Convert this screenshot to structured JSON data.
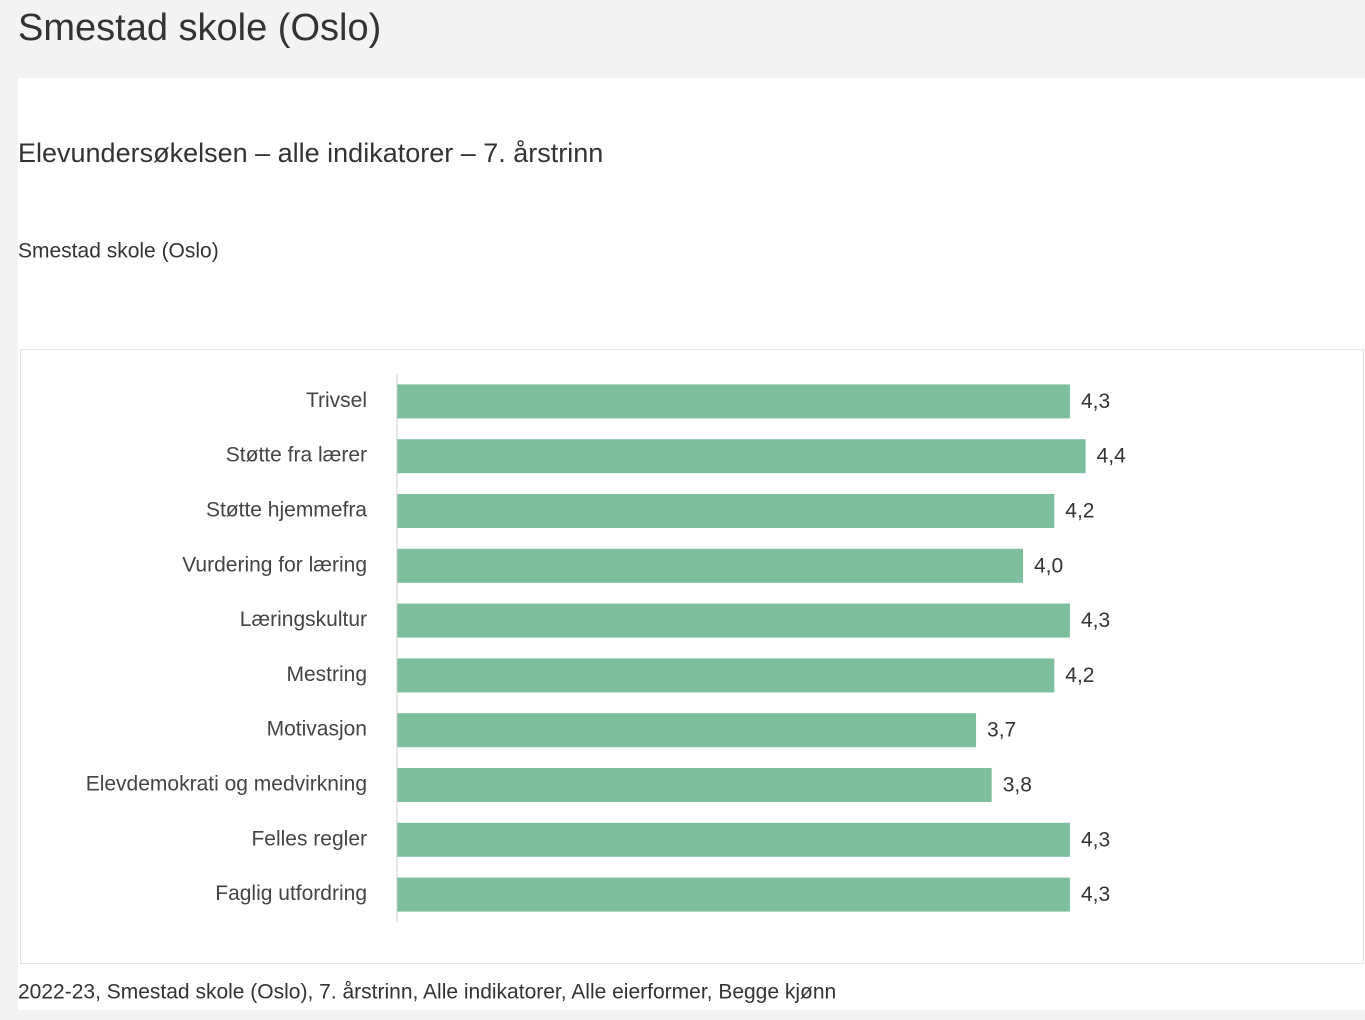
{
  "page_title": "Smestad skole (Oslo)",
  "chart_data": {
    "type": "bar",
    "orientation": "horizontal",
    "title": "Elevundersøkelsen – alle indikatorer – 7. årstrinn",
    "subtitle": "Smestad skole (Oslo)",
    "categories": [
      "Trivsel",
      "Støtte fra lærer",
      "Støtte hjemmefra",
      "Vurdering for læring",
      "Læringskultur",
      "Mestring",
      "Motivasjon",
      "Elevdemokrati og medvirkning",
      "Felles regler",
      "Faglig utfordring"
    ],
    "values": [
      4.3,
      4.4,
      4.2,
      4.0,
      4.3,
      4.2,
      3.7,
      3.8,
      4.3,
      4.3
    ],
    "value_labels": [
      "4,3",
      "4,4",
      "4,2",
      "4,0",
      "4,3",
      "4,2",
      "3,7",
      "3,8",
      "4,3",
      "4,3"
    ],
    "color": "#7dbf9c",
    "xlim": [
      0,
      6
    ]
  },
  "caption": "2022-23, Smestad skole (Oslo), 7. årstrinn, Alle indikatorer, Alle eierformer, Begge kjønn"
}
